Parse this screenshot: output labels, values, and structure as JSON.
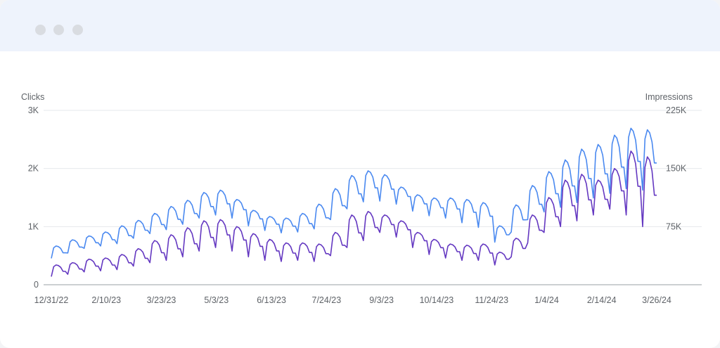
{
  "window": {
    "controls": [
      "window-dot",
      "window-dot",
      "window-dot"
    ],
    "background_color": "#eef3fc"
  },
  "chart_data": {
    "type": "line",
    "title": "",
    "y_left": {
      "label": "Clicks",
      "ticks": [
        "0",
        "1K",
        "2K",
        "3K"
      ],
      "tick_values": [
        0,
        1000,
        2000,
        3000
      ],
      "ylim": [
        0,
        3000
      ]
    },
    "y_right": {
      "label": "Impressions",
      "ticks": [
        "75K",
        "150K",
        "225K"
      ],
      "tick_values": [
        75000,
        150000,
        225000
      ],
      "ylim": [
        0,
        225000
      ]
    },
    "x_ticks": [
      "12/31/22",
      "2/10/23",
      "3/23/23",
      "5/3/23",
      "6/13/23",
      "7/24/23",
      "9/3/23",
      "10/14/23",
      "11/24/23",
      "1/4/24",
      "2/14/24",
      "3/26/24"
    ],
    "grid": true,
    "series": [
      {
        "axis": "left",
        "color": "#6438c1",
        "weekly_low": [
          140,
          180,
          220,
          240,
          260,
          320,
          380,
          420,
          480,
          580,
          640,
          580,
          480,
          420,
          400,
          420,
          400,
          500,
          640,
          760,
          900,
          820,
          640,
          520,
          460,
          420,
          420,
          340,
          480,
          720,
          900,
          1000,
          1100,
          1200,
          1300,
          1200,
          1000
        ],
        "weekly_high": [
          340,
          380,
          440,
          460,
          520,
          620,
          760,
          860,
          980,
          1100,
          1120,
          1000,
          880,
          780,
          720,
          720,
          700,
          900,
          1200,
          1260,
          1200,
          1100,
          900,
          780,
          700,
          680,
          700,
          560,
          800,
          1200,
          1500,
          1800,
          1900,
          1800,
          2000,
          2300,
          2200
        ]
      },
      {
        "axis": "right",
        "color": "#4a89f0",
        "weekly_low": [
          34000,
          41000,
          47000,
          50000,
          53000,
          60000,
          66000,
          71000,
          78000,
          86000,
          90000,
          86000,
          76000,
          70000,
          67000,
          68000,
          72000,
          84000,
          98000,
          107000,
          108000,
          104000,
          95000,
          89000,
          86000,
          80000,
          74000,
          55000,
          68000,
          84000,
          94000,
          100000,
          106000,
          112000,
          118000,
          124000,
          122000
        ],
        "weekly_high": [
          50000,
          58000,
          63000,
          68000,
          76000,
          83000,
          92000,
          101000,
          109000,
          119000,
          122000,
          110000,
          96000,
          88000,
          86000,
          92000,
          104000,
          124000,
          141000,
          147000,
          142000,
          126000,
          116000,
          112000,
          112000,
          110000,
          106000,
          76000,
          103000,
          128000,
          146000,
          161000,
          175000,
          181000,
          193000,
          202000,
          200000
        ]
      }
    ]
  }
}
